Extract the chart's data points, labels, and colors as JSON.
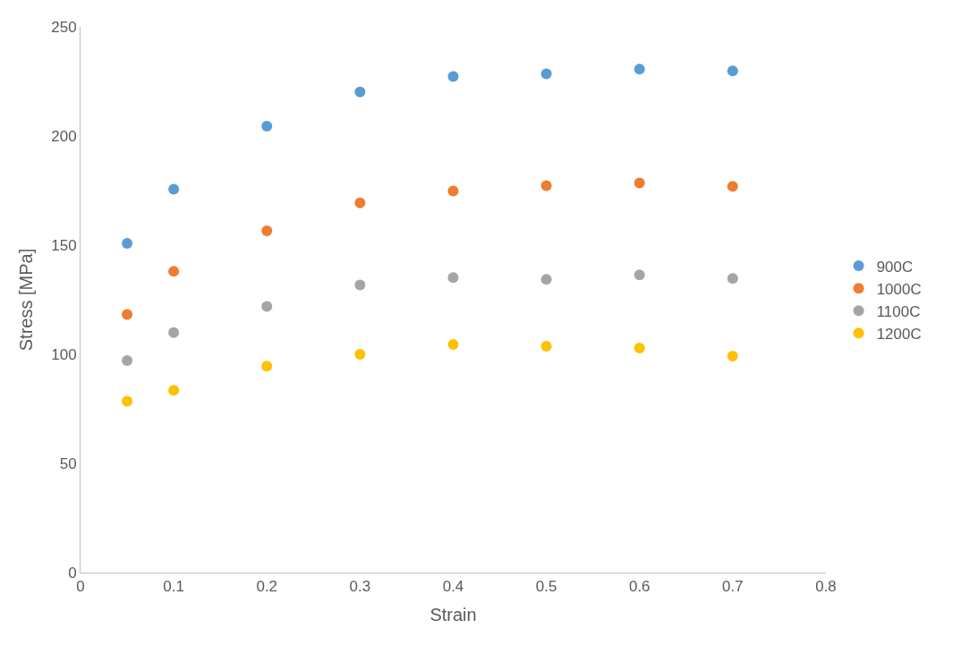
{
  "chart_data": {
    "type": "scatter",
    "xlabel": "Strain",
    "ylabel": "Stress [MPa]",
    "x": [
      0.05,
      0.1,
      0.2,
      0.3,
      0.4,
      0.5,
      0.6,
      0.7
    ],
    "series": [
      {
        "name": "900C",
        "color": "#5b9bd5",
        "values": [
          150.8,
          175.6,
          204.5,
          220.2,
          227.3,
          228.5,
          230.6,
          229.8
        ]
      },
      {
        "name": "1000C",
        "color": "#ed7d31",
        "values": [
          118.2,
          138,
          156.6,
          169.4,
          174.8,
          177.3,
          178.5,
          176.9
        ]
      },
      {
        "name": "1100C",
        "color": "#a5a5a5",
        "values": [
          97.1,
          109.9,
          121.9,
          131.8,
          135.1,
          134.3,
          136.4,
          134.7
        ]
      },
      {
        "name": "1200C",
        "color": "#ffc000",
        "values": [
          78.5,
          83.5,
          94.6,
          100,
          104.5,
          103.7,
          102.9,
          99.2
        ]
      }
    ],
    "xlim": [
      0,
      0.8
    ],
    "xticks": [
      0,
      0.1,
      0.2,
      0.3,
      0.4,
      0.5,
      0.6,
      0.7,
      0.8
    ],
    "ylim": [
      0,
      250
    ],
    "yticks": [
      0,
      50,
      100,
      150,
      200,
      250
    ],
    "grid": false,
    "legend": "right",
    "marker": "circle"
  }
}
